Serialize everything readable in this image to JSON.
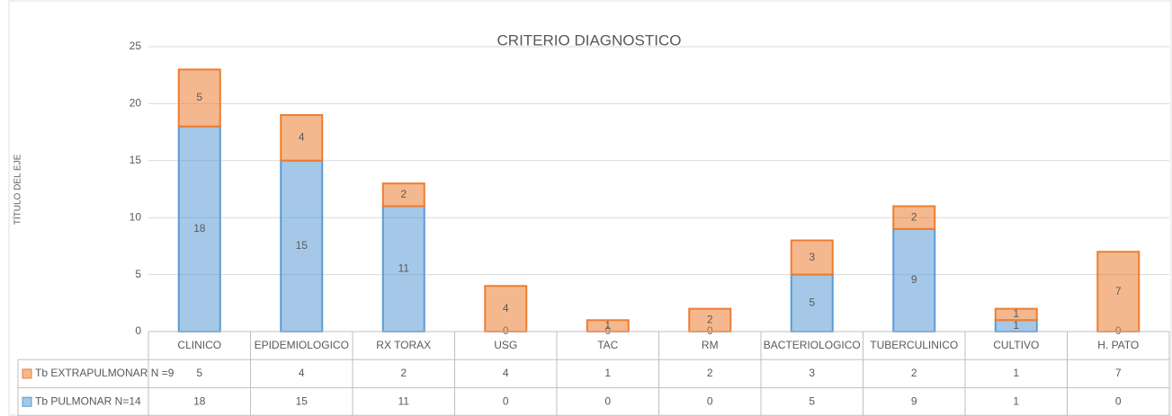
{
  "chart_data": {
    "type": "stacked_bar",
    "title": "CRITERIO DIAGNOSTICO",
    "y_axis_label": "TÍTULO DEL EJE",
    "categories": [
      "CLINICO",
      "EPIDEMIOLOGICO",
      "RX TORAX",
      "USG",
      "TAC",
      "RM",
      "BACTERIOLOGICO",
      "TUBERCULINICO",
      "CULTIVO",
      "H. PATO"
    ],
    "series": [
      {
        "name": "Tb PULMONAR N=14",
        "color": "#5b9bd5",
        "values": [
          18,
          15,
          11,
          0,
          0,
          0,
          5,
          9,
          1,
          0
        ]
      },
      {
        "name": "Tb EXTRAPULMONAR N =9",
        "color": "#ed7d31",
        "values": [
          5,
          4,
          2,
          4,
          1,
          2,
          3,
          2,
          1,
          7
        ]
      }
    ],
    "ylim": [
      0,
      25
    ],
    "yticks": [
      0,
      5,
      10,
      15,
      20,
      25
    ],
    "grid": true,
    "data_table": true
  }
}
